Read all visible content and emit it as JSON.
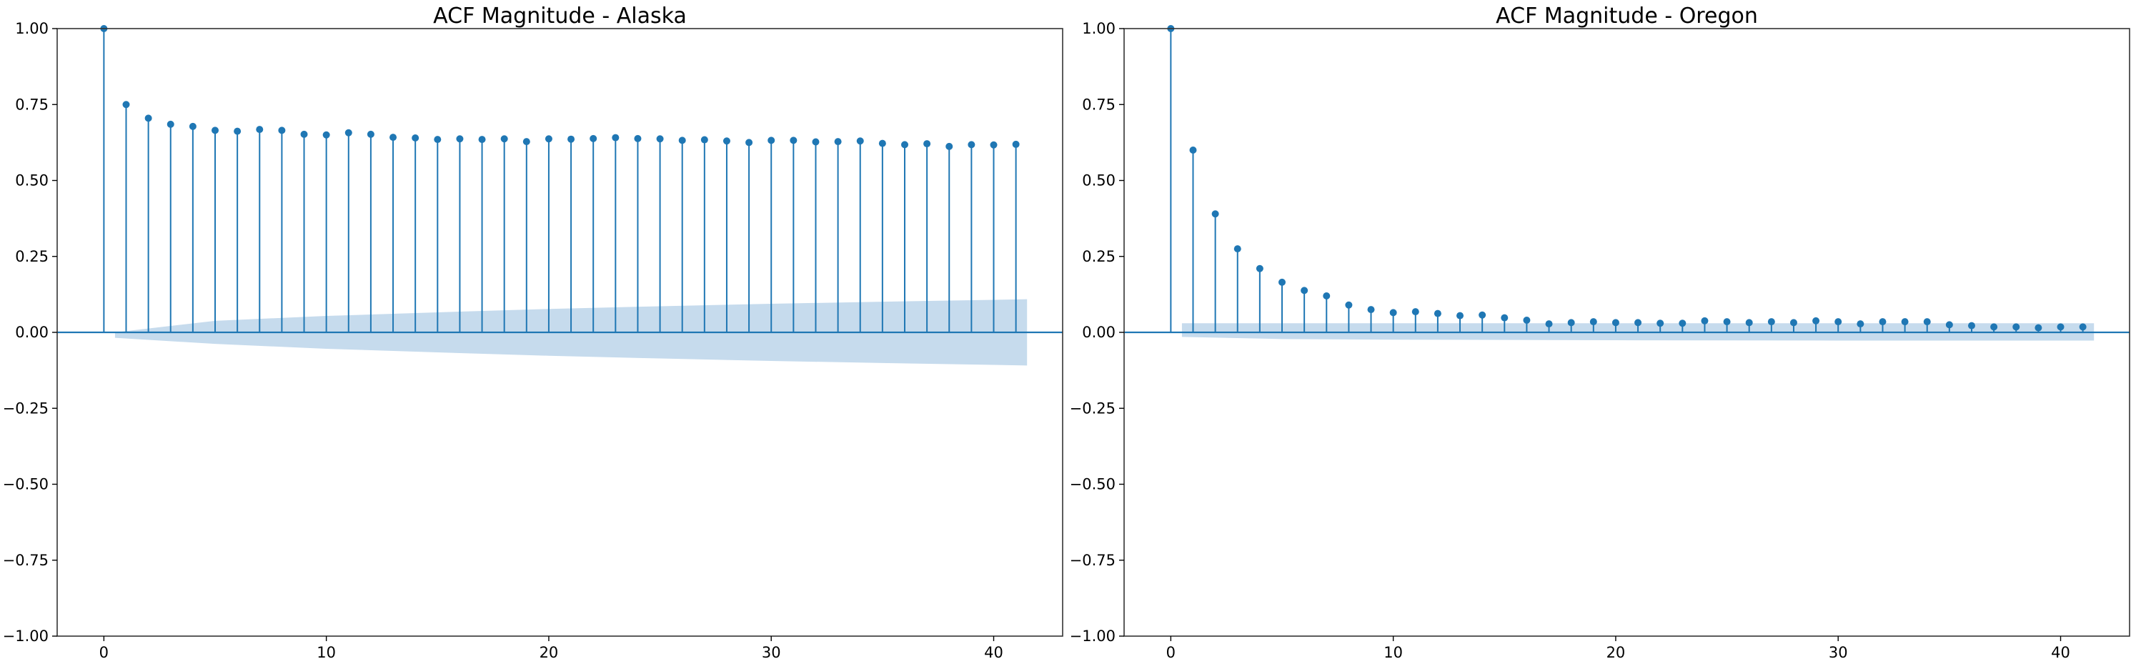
{
  "chart_data": [
    {
      "type": "stem",
      "title": "ACF Magnitude - Alaska",
      "xlabel": "",
      "ylabel": "",
      "xlim": [
        -2.1,
        43.1
      ],
      "ylim": [
        -1.0,
        1.0
      ],
      "x_ticks": [
        0,
        10,
        20,
        30,
        40
      ],
      "x_tick_labels": [
        "0",
        "10",
        "20",
        "30",
        "40"
      ],
      "y_ticks": [
        -1.0,
        -0.75,
        -0.5,
        -0.25,
        0.0,
        0.25,
        0.5,
        0.75,
        1.0
      ],
      "y_tick_labels": [
        "−1.00",
        "−0.75",
        "−0.50",
        "−0.25",
        "0.00",
        "0.25",
        "0.50",
        "0.75",
        "1.00"
      ],
      "grid": false,
      "color": "#1f77b4",
      "band_color": "#c6dbed",
      "lags": [
        0,
        1,
        2,
        3,
        4,
        5,
        6,
        7,
        8,
        9,
        10,
        11,
        12,
        13,
        14,
        15,
        16,
        17,
        18,
        19,
        20,
        21,
        22,
        23,
        24,
        25,
        26,
        27,
        28,
        29,
        30,
        31,
        32,
        33,
        34,
        35,
        36,
        37,
        38,
        39,
        40,
        41
      ],
      "values": [
        1.0,
        0.75,
        0.705,
        0.685,
        0.678,
        0.665,
        0.662,
        0.668,
        0.665,
        0.652,
        0.65,
        0.657,
        0.652,
        0.642,
        0.64,
        0.635,
        0.637,
        0.635,
        0.637,
        0.628,
        0.637,
        0.636,
        0.638,
        0.641,
        0.638,
        0.637,
        0.632,
        0.634,
        0.63,
        0.625,
        0.632,
        0.632,
        0.627,
        0.628,
        0.63,
        0.622,
        0.618,
        0.621,
        0.612,
        0.618,
        0.617,
        0.619
      ],
      "confidence_band": {
        "lags": [
          0.5,
          5,
          10,
          15,
          20,
          25,
          30,
          35,
          41.5
        ],
        "upper": [
          0.0,
          0.038,
          0.054,
          0.066,
          0.077,
          0.086,
          0.094,
          0.101,
          0.109
        ],
        "lower": [
          -0.018,
          -0.038,
          -0.054,
          -0.066,
          -0.077,
          -0.086,
          -0.094,
          -0.101,
          -0.109
        ]
      }
    },
    {
      "type": "stem",
      "title": "ACF Magnitude - Oregon",
      "xlabel": "",
      "ylabel": "",
      "xlim": [
        -2.1,
        43.1
      ],
      "ylim": [
        -1.0,
        1.0
      ],
      "x_ticks": [
        0,
        10,
        20,
        30,
        40
      ],
      "x_tick_labels": [
        "0",
        "10",
        "20",
        "30",
        "40"
      ],
      "y_ticks": [
        -1.0,
        -0.75,
        -0.5,
        -0.25,
        0.0,
        0.25,
        0.5,
        0.75,
        1.0
      ],
      "y_tick_labels": [
        "−1.00",
        "−0.75",
        "−0.50",
        "−0.25",
        "0.00",
        "0.25",
        "0.50",
        "0.75",
        "1.00"
      ],
      "grid": false,
      "color": "#1f77b4",
      "band_color": "#c6dbed",
      "lags": [
        0,
        1,
        2,
        3,
        4,
        5,
        6,
        7,
        8,
        9,
        10,
        11,
        12,
        13,
        14,
        15,
        16,
        17,
        18,
        19,
        20,
        21,
        22,
        23,
        24,
        25,
        26,
        27,
        28,
        29,
        30,
        31,
        32,
        33,
        34,
        35,
        36,
        37,
        38,
        39,
        40,
        41
      ],
      "values": [
        1.0,
        0.6,
        0.39,
        0.275,
        0.21,
        0.165,
        0.138,
        0.12,
        0.09,
        0.075,
        0.065,
        0.068,
        0.062,
        0.055,
        0.057,
        0.048,
        0.04,
        0.028,
        0.032,
        0.035,
        0.032,
        0.032,
        0.03,
        0.03,
        0.038,
        0.035,
        0.032,
        0.035,
        0.032,
        0.038,
        0.035,
        0.028,
        0.035,
        0.035,
        0.035,
        0.025,
        0.022,
        0.018,
        0.018,
        0.015,
        0.018,
        0.018
      ],
      "confidence_band": {
        "lags": [
          0.5,
          5,
          10,
          20,
          30,
          41.5
        ],
        "upper": [
          0.03,
          0.03,
          0.03,
          0.03,
          0.03,
          0.03
        ],
        "lower": [
          -0.015,
          -0.022,
          -0.024,
          -0.026,
          -0.027,
          -0.027
        ]
      }
    }
  ]
}
